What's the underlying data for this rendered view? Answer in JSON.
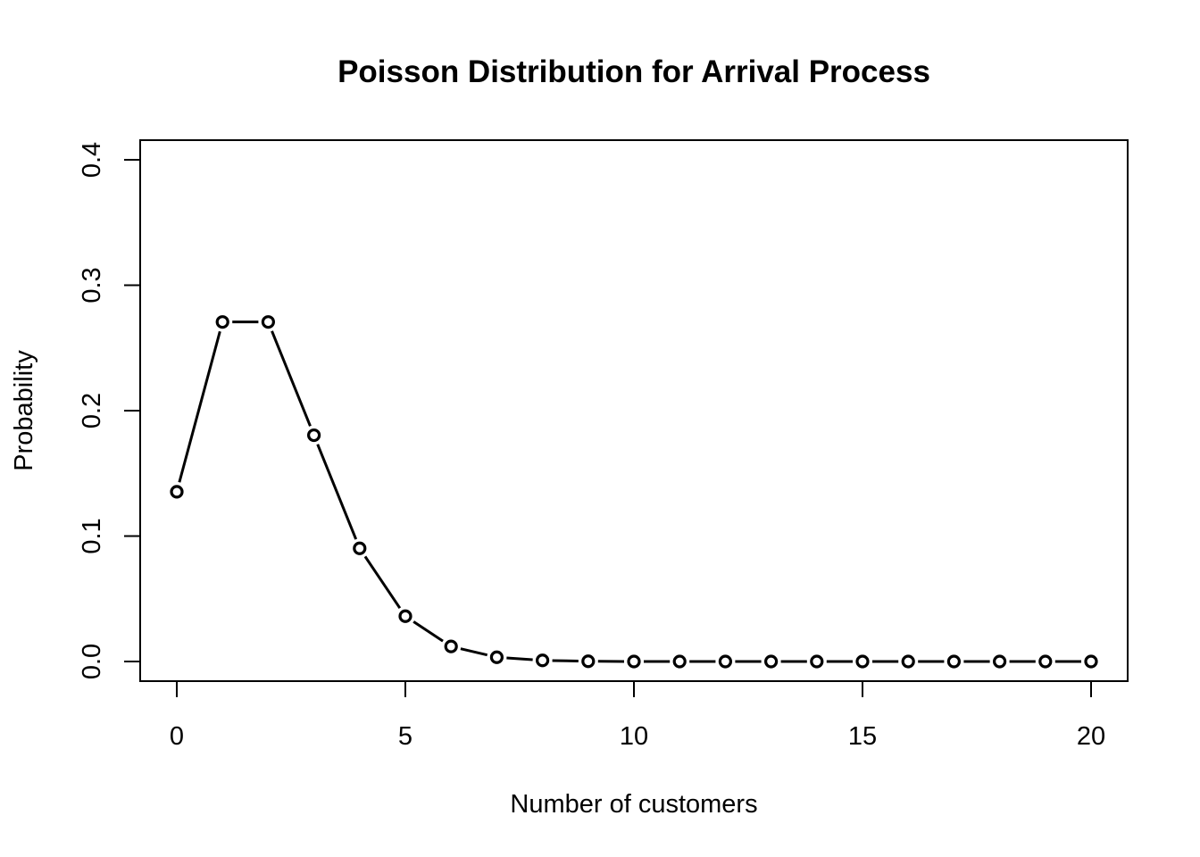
{
  "chart_data": {
    "type": "line",
    "title": "Poisson Distribution for Arrival Process",
    "xlabel": "Number of customers",
    "ylabel": "Probability",
    "xlim": [
      0,
      20
    ],
    "ylim": [
      0,
      0.4
    ],
    "x_ticks": [
      0,
      5,
      10,
      15,
      20
    ],
    "x_tick_labels": [
      "0",
      "5",
      "10",
      "15",
      "20"
    ],
    "y_ticks": [
      0.0,
      0.1,
      0.2,
      0.3,
      0.4
    ],
    "y_tick_labels": [
      "0.0",
      "0.1",
      "0.2",
      "0.3",
      "0.4"
    ],
    "grid": false,
    "legend": "none",
    "line_style": "both (points and lines)",
    "point_shape": "open circle",
    "color": "#000000",
    "series": [
      {
        "x": [
          0,
          1,
          2,
          3,
          4,
          5,
          6,
          7,
          8,
          9,
          10,
          11,
          12,
          13,
          14,
          15,
          16,
          17,
          18,
          19,
          20
        ],
        "values": [
          0.1353,
          0.2707,
          0.2707,
          0.1804,
          0.0902,
          0.0361,
          0.012,
          0.0034,
          0.0009,
          0.0002,
          0.0,
          0.0,
          0.0,
          0.0,
          0.0,
          0.0,
          0.0,
          0.0,
          0.0,
          0.0,
          0.0
        ]
      }
    ]
  }
}
